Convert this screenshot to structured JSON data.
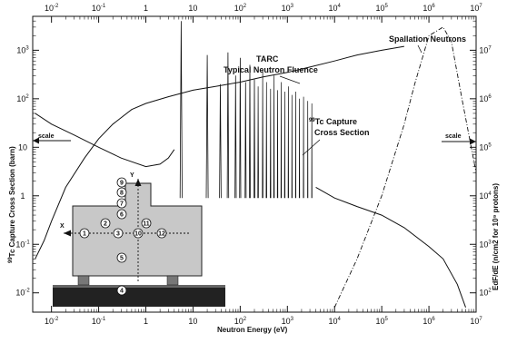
{
  "chart_data": {
    "type": "line",
    "title": "",
    "xlabel": "Neutron Energy (eV)",
    "ylabel_left_prefix": "99",
    "ylabel_left_main": "Tc Capture Cross Section (barn)",
    "ylabel_right": "EdF/dE (n/cm2 for 10⁹ protons)",
    "x_scale": "log",
    "xlim": [
      0.004,
      10000000
    ],
    "ylim_left": [
      0.004,
      5000
    ],
    "grid": false,
    "legend": "none",
    "x_ticks_bottom": [
      {
        "value": 0.01,
        "mantissa": "10",
        "exp": "-2"
      },
      {
        "value": 0.1,
        "mantissa": "10",
        "exp": "-1"
      },
      {
        "value": 1,
        "mantissa": "1",
        "exp": ""
      },
      {
        "value": 10,
        "mantissa": "10",
        "exp": ""
      },
      {
        "value": 100,
        "mantissa": "10",
        "exp": "2"
      },
      {
        "value": 1000,
        "mantissa": "10",
        "exp": "3"
      },
      {
        "value": 10000,
        "mantissa": "10",
        "exp": "4"
      },
      {
        "value": 100000,
        "mantissa": "10",
        "exp": "5"
      },
      {
        "value": 1000000,
        "mantissa": "10",
        "exp": "6"
      },
      {
        "value": 10000000,
        "mantissa": "10",
        "exp": "7"
      }
    ],
    "x_ticks_top": [
      {
        "value": 0.01,
        "mantissa": "10",
        "exp": "-2"
      },
      {
        "value": 0.1,
        "mantissa": "10",
        "exp": "-1"
      },
      {
        "value": 1,
        "mantissa": "1",
        "exp": ""
      },
      {
        "value": 10,
        "mantissa": "10",
        "exp": ""
      },
      {
        "value": 100,
        "mantissa": "10",
        "exp": "2"
      },
      {
        "value": 1000,
        "mantissa": "10",
        "exp": "3"
      },
      {
        "value": 10000,
        "mantissa": "10",
        "exp": "4"
      },
      {
        "value": 100000,
        "mantissa": "10",
        "exp": "5"
      },
      {
        "value": 1000000,
        "mantissa": "10",
        "exp": "6"
      },
      {
        "value": 10000000,
        "mantissa": "10",
        "exp": "7"
      }
    ],
    "y_ticks_left": [
      {
        "value": 0.01,
        "mantissa": "10",
        "exp": "-2"
      },
      {
        "value": 0.1,
        "mantissa": "10",
        "exp": "-1"
      },
      {
        "value": 1,
        "mantissa": "1",
        "exp": ""
      },
      {
        "value": 10,
        "mantissa": "10",
        "exp": ""
      },
      {
        "value": 100,
        "mantissa": "10",
        "exp": "2"
      },
      {
        "value": 1000,
        "mantissa": "10",
        "exp": "3"
      }
    ],
    "y_ticks_right": [
      {
        "left_value": 0.01,
        "mantissa": "10",
        "exp": "2"
      },
      {
        "left_value": 0.1,
        "mantissa": "10",
        "exp": "3"
      },
      {
        "left_value": 1,
        "mantissa": "10",
        "exp": "4"
      },
      {
        "left_value": 10,
        "mantissa": "10",
        "exp": "5"
      },
      {
        "left_value": 100,
        "mantissa": "10",
        "exp": "6"
      },
      {
        "left_value": 1000,
        "mantissa": "10",
        "exp": "7"
      }
    ],
    "annotations": {
      "tarc_line1": "TARC",
      "tarc_line2": "Typical Neutron Fluence",
      "capture_prefix": "99",
      "capture_line1": "Tc Capture",
      "capture_line2": "Cross Section",
      "spallation": "Spallation Neutrons",
      "scale_left": "scale",
      "scale_right": "scale",
      "inset_axis_x": "X",
      "inset_axis_y": "Y"
    },
    "inset_positions": [
      "1",
      "2",
      "3",
      "4",
      "5",
      "6",
      "7",
      "8",
      "9",
      "10",
      "11",
      "12"
    ],
    "series": [
      {
        "label": "TARC Typical Neutron Fluence",
        "style": "solid",
        "x": [
          0.0045,
          0.007,
          0.01,
          0.02,
          0.05,
          0.1,
          0.2,
          0.5,
          1,
          3,
          10,
          30,
          100,
          300,
          1000,
          3000,
          10000,
          30000,
          100000,
          300000
        ],
        "y": [
          0.05,
          0.12,
          0.3,
          1.5,
          6,
          15,
          30,
          60,
          80,
          110,
          150,
          180,
          220,
          280,
          350,
          450,
          600,
          800,
          1000,
          1200
        ]
      },
      {
        "label": "99Tc Capture Cross Section (smooth part)",
        "style": "solid",
        "x": [
          0.0045,
          0.01,
          0.03,
          0.1,
          0.3,
          1,
          2,
          3,
          4
        ],
        "y": [
          50,
          30,
          18,
          10,
          6,
          4,
          4.5,
          6,
          9
        ]
      },
      {
        "label": "99Tc Capture Cross Section (fast region)",
        "style": "solid",
        "x": [
          4000,
          10000,
          30000,
          100000,
          300000,
          1000000,
          2000000,
          4000000,
          6000000
        ],
        "y": [
          1.5,
          0.9,
          0.6,
          0.4,
          0.22,
          0.09,
          0.05,
          0.015,
          0.005
        ]
      },
      {
        "label": "Spallation Neutrons",
        "style": "dash-dot",
        "x": [
          10000,
          30000,
          100000,
          300000,
          500000,
          1000000,
          2000000,
          3000000,
          5000000,
          10000000
        ],
        "y": [
          0.005,
          0.05,
          1,
          30,
          200,
          2000,
          3000,
          1500,
          100,
          3
        ]
      }
    ],
    "resonances": [
      {
        "e": 5.6,
        "peak": 4000,
        "w": 0.05
      },
      {
        "e": 20,
        "peak": 800,
        "w": 0.045
      },
      {
        "e": 38,
        "peak": 200,
        "w": 0.04
      },
      {
        "e": 55,
        "peak": 900,
        "w": 0.035
      },
      {
        "e": 80,
        "peak": 300,
        "w": 0.03
      },
      {
        "e": 100,
        "peak": 700,
        "w": 0.028
      },
      {
        "e": 130,
        "peak": 220,
        "w": 0.026
      },
      {
        "e": 160,
        "peak": 500,
        "w": 0.024
      },
      {
        "e": 200,
        "peak": 250,
        "w": 0.022
      },
      {
        "e": 240,
        "peak": 180,
        "w": 0.02
      },
      {
        "e": 300,
        "peak": 400,
        "w": 0.018
      },
      {
        "e": 360,
        "peak": 220,
        "w": 0.017
      },
      {
        "e": 440,
        "peak": 160,
        "w": 0.016
      },
      {
        "e": 520,
        "peak": 300,
        "w": 0.015
      },
      {
        "e": 620,
        "peak": 150,
        "w": 0.014
      },
      {
        "e": 740,
        "peak": 220,
        "w": 0.013
      },
      {
        "e": 880,
        "peak": 140,
        "w": 0.012
      },
      {
        "e": 1050,
        "peak": 180,
        "w": 0.011
      },
      {
        "e": 1250,
        "peak": 120,
        "w": 0.011
      },
      {
        "e": 1500,
        "peak": 140,
        "w": 0.01
      },
      {
        "e": 1800,
        "peak": 100,
        "w": 0.01
      },
      {
        "e": 2200,
        "peak": 110,
        "w": 0.01
      },
      {
        "e": 2700,
        "peak": 90,
        "w": 0.01
      },
      {
        "e": 3300,
        "peak": 80,
        "w": 0.01
      }
    ]
  }
}
